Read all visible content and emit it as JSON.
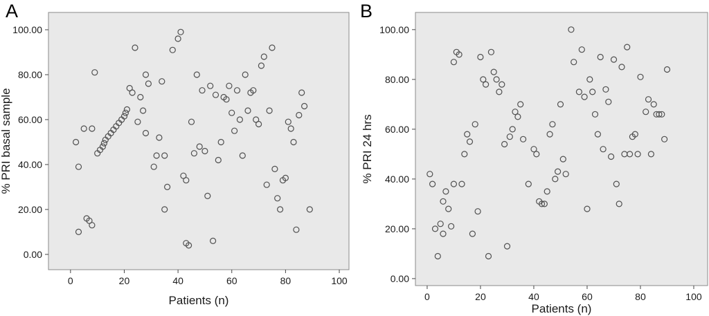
{
  "figure": {
    "background": "#ffffff",
    "plot_bg": "#e9e9e9",
    "frame_color": "#8a8a8a",
    "tick_color": "#444444",
    "text_color": "#1a1a1a",
    "marker_color": "#4f4f4f"
  },
  "chart_data": [
    {
      "type": "scatter",
      "panel_label": "A",
      "xlabel": "Patients (n)",
      "ylabel": "% PRI basal sample",
      "xlim": [
        -8.2,
        103.6
      ],
      "ylim": [
        -6.8,
        107.7
      ],
      "grid": false,
      "legend": "none",
      "x_ticks": [
        {
          "v": 0,
          "label": "0"
        },
        {
          "v": 20,
          "label": "20"
        },
        {
          "v": 40,
          "label": "40"
        },
        {
          "v": 60,
          "label": "60"
        },
        {
          "v": 80,
          "label": "80"
        },
        {
          "v": 100,
          "label": "100"
        }
      ],
      "y_ticks": [
        {
          "v": 0,
          "label": "0.00"
        },
        {
          "v": 20,
          "label": "20.00"
        },
        {
          "v": 40,
          "label": "40.00"
        },
        {
          "v": 60,
          "label": "60.00"
        },
        {
          "v": 80,
          "label": "80.00"
        },
        {
          "v": 100,
          "label": "100.00"
        }
      ],
      "points": [
        [
          2,
          50
        ],
        [
          3,
          39
        ],
        [
          3,
          10
        ],
        [
          5,
          56
        ],
        [
          8,
          56
        ],
        [
          6,
          16
        ],
        [
          7,
          15
        ],
        [
          8,
          13
        ],
        [
          9,
          81
        ],
        [
          10,
          45
        ],
        [
          11,
          46.5
        ],
        [
          12,
          48
        ],
        [
          12.5,
          49.5
        ],
        [
          13,
          51
        ],
        [
          14,
          52.5
        ],
        [
          15,
          54
        ],
        [
          16,
          55.5
        ],
        [
          17,
          57
        ],
        [
          18,
          58.5
        ],
        [
          19,
          60
        ],
        [
          20,
          61.5
        ],
        [
          20.5,
          63
        ],
        [
          21,
          64.5
        ],
        [
          22,
          74
        ],
        [
          23,
          72
        ],
        [
          24,
          92
        ],
        [
          25,
          59
        ],
        [
          26,
          70
        ],
        [
          27,
          64
        ],
        [
          28,
          80
        ],
        [
          28,
          54
        ],
        [
          29,
          76
        ],
        [
          31,
          39
        ],
        [
          32,
          44
        ],
        [
          33,
          52
        ],
        [
          34,
          77
        ],
        [
          35,
          44
        ],
        [
          35,
          20
        ],
        [
          36,
          30
        ],
        [
          38,
          91
        ],
        [
          40,
          96
        ],
        [
          41,
          99
        ],
        [
          42,
          35
        ],
        [
          43,
          33
        ],
        [
          43,
          5
        ],
        [
          44,
          4
        ],
        [
          45,
          59
        ],
        [
          46,
          45
        ],
        [
          47,
          80
        ],
        [
          48,
          48
        ],
        [
          49,
          73
        ],
        [
          50,
          46
        ],
        [
          51,
          26
        ],
        [
          52,
          75
        ],
        [
          53,
          6
        ],
        [
          54,
          71
        ],
        [
          55,
          42
        ],
        [
          56,
          50
        ],
        [
          57,
          70
        ],
        [
          58,
          69
        ],
        [
          59,
          75
        ],
        [
          60,
          63
        ],
        [
          61,
          55
        ],
        [
          62,
          73
        ],
        [
          63,
          60
        ],
        [
          64,
          44
        ],
        [
          65,
          80
        ],
        [
          66,
          64
        ],
        [
          67,
          72
        ],
        [
          68,
          73
        ],
        [
          69,
          60
        ],
        [
          70,
          58
        ],
        [
          71,
          84
        ],
        [
          72,
          88
        ],
        [
          73,
          31
        ],
        [
          74,
          64
        ],
        [
          75,
          92
        ],
        [
          76,
          38
        ],
        [
          77,
          25
        ],
        [
          78,
          20
        ],
        [
          79,
          33
        ],
        [
          80,
          34
        ],
        [
          81,
          59
        ],
        [
          82,
          56
        ],
        [
          83,
          50
        ],
        [
          84,
          11
        ],
        [
          85,
          62
        ],
        [
          86,
          72
        ],
        [
          87,
          66
        ],
        [
          89,
          20
        ]
      ]
    },
    {
      "type": "scatter",
      "panel_label": "B",
      "xlabel": "Patients (n)",
      "ylabel": "% PRI 24 hrs",
      "xlim": [
        -4.4,
        105.2
      ],
      "ylim": [
        -2.8,
        106.9
      ],
      "grid": false,
      "legend": "none",
      "x_ticks": [
        {
          "v": 0,
          "label": "0"
        },
        {
          "v": 20,
          "label": "20"
        },
        {
          "v": 40,
          "label": "40"
        },
        {
          "v": 60,
          "label": "60"
        },
        {
          "v": 80,
          "label": "80"
        },
        {
          "v": 100,
          "label": "100"
        }
      ],
      "y_ticks": [
        {
          "v": 0,
          "label": "0.00"
        },
        {
          "v": 20,
          "label": "20.00"
        },
        {
          "v": 40,
          "label": "40.00"
        },
        {
          "v": 60,
          "label": "60.00"
        },
        {
          "v": 80,
          "label": "80.00"
        },
        {
          "v": 100,
          "label": "100.00"
        }
      ],
      "points": [
        [
          1,
          42
        ],
        [
          2,
          38
        ],
        [
          3,
          20
        ],
        [
          4,
          9
        ],
        [
          5,
          22
        ],
        [
          6,
          18
        ],
        [
          6,
          31
        ],
        [
          7,
          35
        ],
        [
          8,
          28
        ],
        [
          9,
          21
        ],
        [
          10,
          38
        ],
        [
          10,
          87
        ],
        [
          11,
          91
        ],
        [
          12,
          90
        ],
        [
          13,
          38
        ],
        [
          14,
          50
        ],
        [
          15,
          58
        ],
        [
          16,
          55
        ],
        [
          17,
          18
        ],
        [
          18,
          62
        ],
        [
          19,
          27
        ],
        [
          20,
          89
        ],
        [
          21,
          80
        ],
        [
          22,
          78
        ],
        [
          23,
          9
        ],
        [
          24,
          91
        ],
        [
          25,
          83
        ],
        [
          26,
          80
        ],
        [
          27,
          75
        ],
        [
          28,
          78
        ],
        [
          29,
          54
        ],
        [
          30,
          13
        ],
        [
          31,
          57
        ],
        [
          32,
          60
        ],
        [
          33,
          67
        ],
        [
          34,
          65
        ],
        [
          35,
          70
        ],
        [
          36,
          56
        ],
        [
          38,
          38
        ],
        [
          40,
          52
        ],
        [
          41,
          50
        ],
        [
          42,
          31
        ],
        [
          43,
          30
        ],
        [
          44,
          30
        ],
        [
          45,
          35
        ],
        [
          46,
          58
        ],
        [
          47,
          62
        ],
        [
          48,
          40
        ],
        [
          49,
          43
        ],
        [
          50,
          70
        ],
        [
          51,
          48
        ],
        [
          52,
          42
        ],
        [
          54,
          100
        ],
        [
          55,
          87
        ],
        [
          57,
          75
        ],
        [
          58,
          92
        ],
        [
          59,
          73
        ],
        [
          60,
          28
        ],
        [
          61,
          80
        ],
        [
          62,
          75
        ],
        [
          63,
          66
        ],
        [
          64,
          58
        ],
        [
          65,
          89
        ],
        [
          66,
          52
        ],
        [
          67,
          76
        ],
        [
          68,
          71
        ],
        [
          69,
          49
        ],
        [
          70,
          88
        ],
        [
          71,
          38
        ],
        [
          72,
          30
        ],
        [
          73,
          85
        ],
        [
          74,
          50
        ],
        [
          75,
          93
        ],
        [
          76,
          50
        ],
        [
          77,
          57
        ],
        [
          78,
          58
        ],
        [
          79,
          50
        ],
        [
          80,
          81
        ],
        [
          82,
          67
        ],
        [
          83,
          72
        ],
        [
          84,
          50
        ],
        [
          85,
          70
        ],
        [
          86,
          66
        ],
        [
          87,
          66
        ],
        [
          88,
          66
        ],
        [
          89,
          56
        ],
        [
          90,
          84
        ]
      ]
    }
  ]
}
